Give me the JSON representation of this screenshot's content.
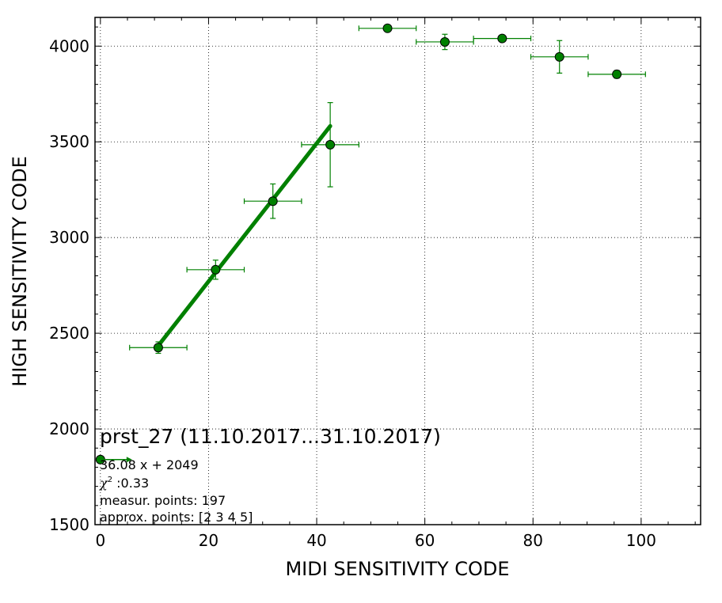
{
  "chart_data": {
    "type": "scatter",
    "xlabel": "MIDI SENSITIVITY CODE",
    "ylabel": "HIGH SENSITIVITY CODE",
    "xlim": [
      -1,
      111
    ],
    "ylim": [
      1500,
      4150
    ],
    "x_ticks": [
      0,
      20,
      40,
      60,
      80,
      100
    ],
    "y_ticks": [
      1500,
      2000,
      2500,
      3000,
      3500,
      4000
    ],
    "grid": true,
    "colors": {
      "series": "#008000",
      "fit": "#008000",
      "marker_edge": "#000000"
    },
    "series": [
      {
        "points": [
          {
            "x": 0,
            "y": 1840,
            "xerr": 0,
            "yerr": 0
          },
          {
            "x": 10.7,
            "y": 2425,
            "xerr": 5.3,
            "yerr": 30
          },
          {
            "x": 21.3,
            "y": 2832,
            "xerr": 5.3,
            "yerr": 50
          },
          {
            "x": 31.9,
            "y": 3190,
            "xerr": 5.3,
            "yerr": 90
          },
          {
            "x": 42.5,
            "y": 3485,
            "xerr": 5.3,
            "yerr": 220
          },
          {
            "x": 53.1,
            "y": 4093,
            "xerr": 5.3,
            "yerr": 0
          },
          {
            "x": 63.7,
            "y": 4022,
            "xerr": 5.3,
            "yerr": 40
          },
          {
            "x": 74.3,
            "y": 4040,
            "xerr": 5.3,
            "yerr": 0
          },
          {
            "x": 84.9,
            "y": 3944,
            "xerr": 5.3,
            "yerr": 85
          },
          {
            "x": 95.5,
            "y": 3853,
            "xerr": 5.3,
            "yerr": 20
          }
        ]
      }
    ],
    "fit_line": {
      "slope": 36.08,
      "intercept": 2049,
      "x_range": [
        10.7,
        42.5
      ]
    },
    "annotations": {
      "title": "prst_27 (11.10.2017...31.10.2017)",
      "equation": "36.08 x + 2049",
      "chi2_symbol": "χ",
      "chi2_sup": "2",
      "chi2_value": " :0.33",
      "measur": "measur. points: 197",
      "approx": "approx. points: [2 3 4 5]"
    }
  }
}
